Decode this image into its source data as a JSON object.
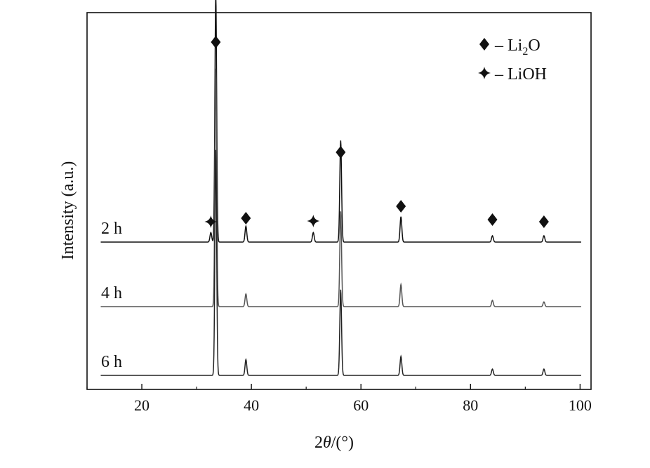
{
  "chart_data": {
    "type": "line",
    "title": "",
    "xlabel_prefix": "2",
    "xlabel_theta": "θ",
    "xlabel_suffix": "/(°)",
    "ylabel": "Intensity (a.u.)",
    "xlim": [
      10,
      102
    ],
    "xticks": [
      20,
      40,
      60,
      80,
      100
    ],
    "grid": false,
    "legend": {
      "placement": "top-right",
      "entries": [
        {
          "marker": "diamond",
          "dash": "–",
          "label_main": "Li",
          "label_sub": "2",
          "label_tail": "O"
        },
        {
          "marker": "star4",
          "dash": "–",
          "label_main": "LiOH",
          "label_sub": "",
          "label_tail": ""
        }
      ]
    },
    "series": [
      {
        "name": "2 h",
        "baseline": 0.72,
        "color": "#111111",
        "peaks": [
          [
            32.6,
            0.03
          ],
          [
            33.5,
            0.78
          ],
          [
            39.0,
            0.05
          ],
          [
            51.3,
            0.03
          ],
          [
            56.3,
            0.32
          ],
          [
            67.3,
            0.08
          ],
          [
            84.0,
            0.02
          ],
          [
            93.4,
            0.02
          ]
        ]
      },
      {
        "name": "4 h",
        "baseline": 0.38,
        "color": "#555555",
        "peaks": [
          [
            33.5,
            0.75
          ],
          [
            39.0,
            0.04
          ],
          [
            56.3,
            0.3
          ],
          [
            67.3,
            0.07
          ],
          [
            84.0,
            0.02
          ],
          [
            93.4,
            0.015
          ]
        ]
      },
      {
        "name": "6 h",
        "baseline": 0.0,
        "color": "#222222",
        "peaks": [
          [
            33.5,
            0.71
          ],
          [
            39.0,
            0.05
          ],
          [
            56.3,
            0.27
          ],
          [
            67.3,
            0.06
          ],
          [
            84.0,
            0.02
          ],
          [
            93.4,
            0.02
          ]
        ]
      }
    ],
    "annotations": [
      {
        "marker": "diamond",
        "x": 33.5,
        "y": 1.05
      },
      {
        "marker": "star4",
        "x": 32.6,
        "y": 0.77
      },
      {
        "marker": "diamond",
        "x": 39.0,
        "y": 0.81
      },
      {
        "marker": "star4",
        "x": 51.3,
        "y": 0.77
      },
      {
        "marker": "diamond",
        "x": 56.3,
        "y": 1.08,
        "rel": "none",
        "y_abs": 1.08
      },
      {
        "marker": "diamond",
        "x": 67.3,
        "y": 0.84
      },
      {
        "marker": "diamond",
        "x": 84.0,
        "y": 0.78
      },
      {
        "marker": "diamond",
        "x": 93.4,
        "y": 0.78
      }
    ]
  }
}
